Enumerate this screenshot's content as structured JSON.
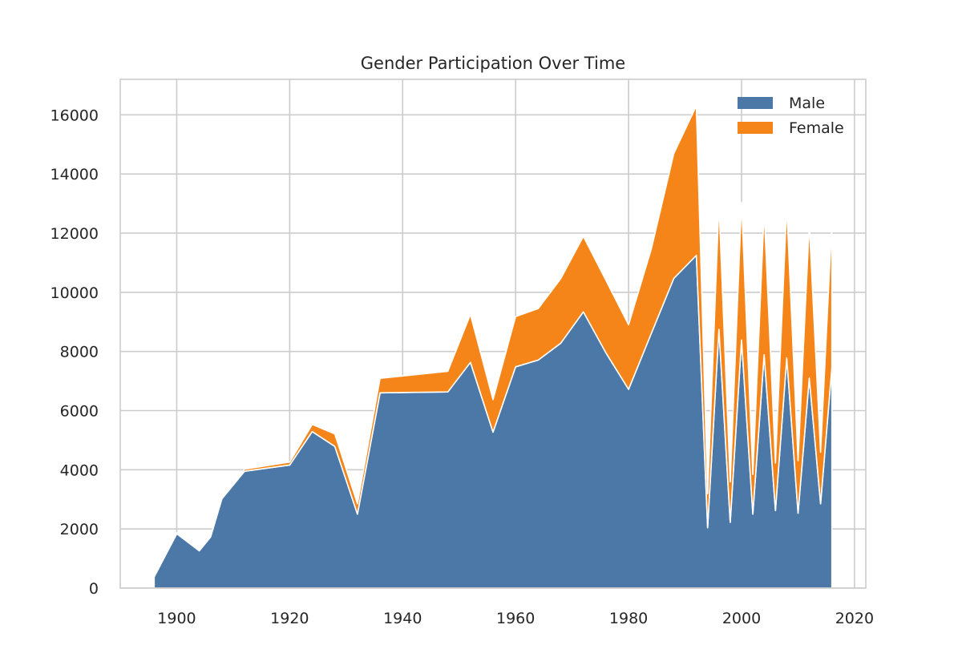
{
  "chart_data": {
    "type": "area",
    "stacked": true,
    "title": "Gender Participation Over Time",
    "xlabel": "",
    "ylabel": "",
    "xlim": [
      1890,
      2022
    ],
    "ylim": [
      0,
      17200
    ],
    "x_ticks": [
      1900,
      1920,
      1940,
      1960,
      1980,
      2000,
      2020
    ],
    "y_ticks": [
      0,
      2000,
      4000,
      6000,
      8000,
      10000,
      12000,
      14000,
      16000
    ],
    "grid": true,
    "legend_position": "top-right",
    "x": [
      1896,
      1900,
      1904,
      1906,
      1908,
      1912,
      1920,
      1924,
      1928,
      1932,
      1936,
      1948,
      1952,
      1956,
      1960,
      1964,
      1968,
      1972,
      1976,
      1980,
      1984,
      1988,
      1992,
      1994,
      1996,
      1998,
      2000,
      2002,
      2004,
      2006,
      2008,
      2010,
      2012,
      2014,
      2016
    ],
    "series": [
      {
        "name": "Male",
        "color": "#4c78a8",
        "values": [
          380,
          1840,
          1260,
          1730,
          3020,
          3950,
          4160,
          5290,
          4790,
          2500,
          6600,
          6630,
          7630,
          5270,
          7480,
          7710,
          8280,
          9340,
          7950,
          6720,
          8600,
          10470,
          11250,
          2040,
          8750,
          2220,
          8390,
          2500,
          7890,
          2620,
          7780,
          2530,
          7100,
          2850,
          7460
        ]
      },
      {
        "name": "Female",
        "color": "#f58518",
        "values": [
          0,
          30,
          20,
          10,
          60,
          70,
          100,
          240,
          420,
          350,
          490,
          700,
          1620,
          1100,
          1700,
          1740,
          2180,
          2550,
          2450,
          2180,
          2850,
          4220,
          5050,
          1150,
          4240,
          1370,
          4650,
          1340,
          4850,
          1610,
          5120,
          1780,
          5210,
          1740,
          4940
        ]
      }
    ]
  }
}
